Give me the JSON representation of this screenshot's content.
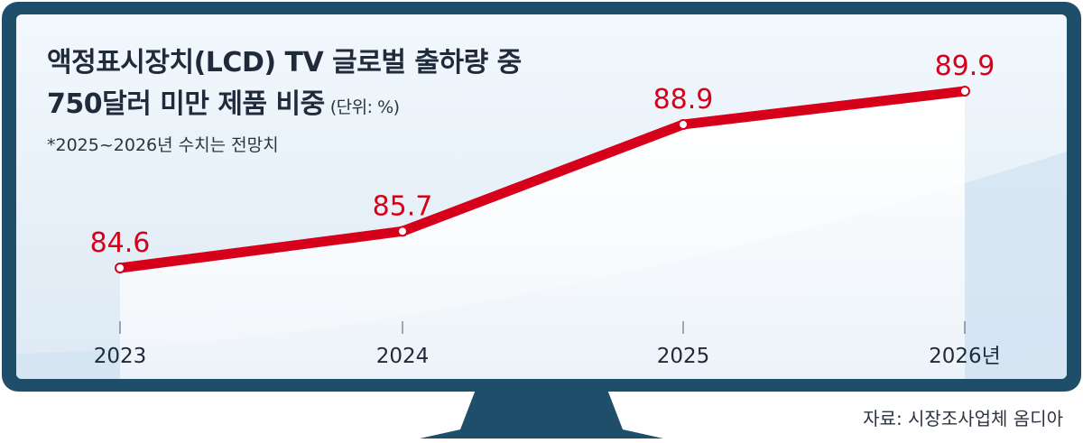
{
  "title": {
    "line1": "액정표시장치(LCD) TV 글로벌 출하량 중",
    "line2": "750달러 미만 제품 비중",
    "unit": "(단위: %)"
  },
  "note": "*2025~2026년 수치는 전망치",
  "source": "자료: 시장조사업체 옴디아",
  "colors": {
    "frame": "#1f4e6b",
    "screen": "#eaf3fa",
    "line": "#d7001a",
    "text": "#1f2a3a"
  },
  "chart_data": {
    "type": "line",
    "categories": [
      "2023",
      "2024",
      "2025",
      "2026년"
    ],
    "series": [
      {
        "values": [
          84.6,
          85.7,
          88.9,
          89.9
        ]
      }
    ],
    "data_labels": [
      "84.6",
      "85.7",
      "88.9",
      "89.9"
    ],
    "title": "액정표시장치(LCD) TV 글로벌 출하량 중 750달러 미만 제품 비중",
    "ylim": [
      84.6,
      89.9
    ],
    "grid": false,
    "legend": "none"
  }
}
